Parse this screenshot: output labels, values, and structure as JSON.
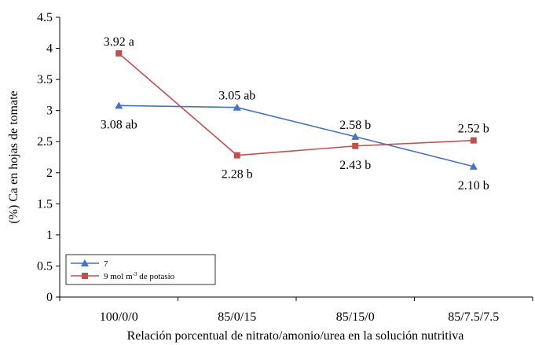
{
  "chart_data": {
    "type": "line",
    "title": "",
    "xlabel": "Relación porcentual de nitrato/amonio/urea en la solución nutritiva",
    "ylabel": "(%) Ca en hojas de tomate",
    "ylim": [
      0,
      4.5
    ],
    "yticks": [
      "0",
      "0.5",
      "1",
      "1.5",
      "2",
      "2.5",
      "3",
      "3.5",
      "4",
      "4.5"
    ],
    "categories": [
      "100/0/0",
      "85/0/15",
      "85/15/0",
      "85/7.5/7.5"
    ],
    "grid": false,
    "legend_position": "bottom-left",
    "series": [
      {
        "name": "7",
        "color": "#4472C4",
        "marker": "triangle",
        "values": [
          3.08,
          3.05,
          2.58,
          2.1
        ],
        "labels": [
          "3.08 ab",
          "3.05 ab",
          "2.58 b",
          "2.10 b"
        ],
        "label_positions": [
          "below",
          "above",
          "above",
          "below"
        ]
      },
      {
        "name_parts": {
          "before": "9 mol m",
          "superscript": "-3",
          "after": " de potasio"
        },
        "color": "#C0504D",
        "marker": "square",
        "values": [
          3.92,
          2.28,
          2.43,
          2.52
        ],
        "labels": [
          "3.92 a",
          "2.28 b",
          "2.43 b",
          "2.52 b"
        ],
        "label_positions": [
          "above",
          "below",
          "below",
          "above"
        ]
      }
    ]
  }
}
